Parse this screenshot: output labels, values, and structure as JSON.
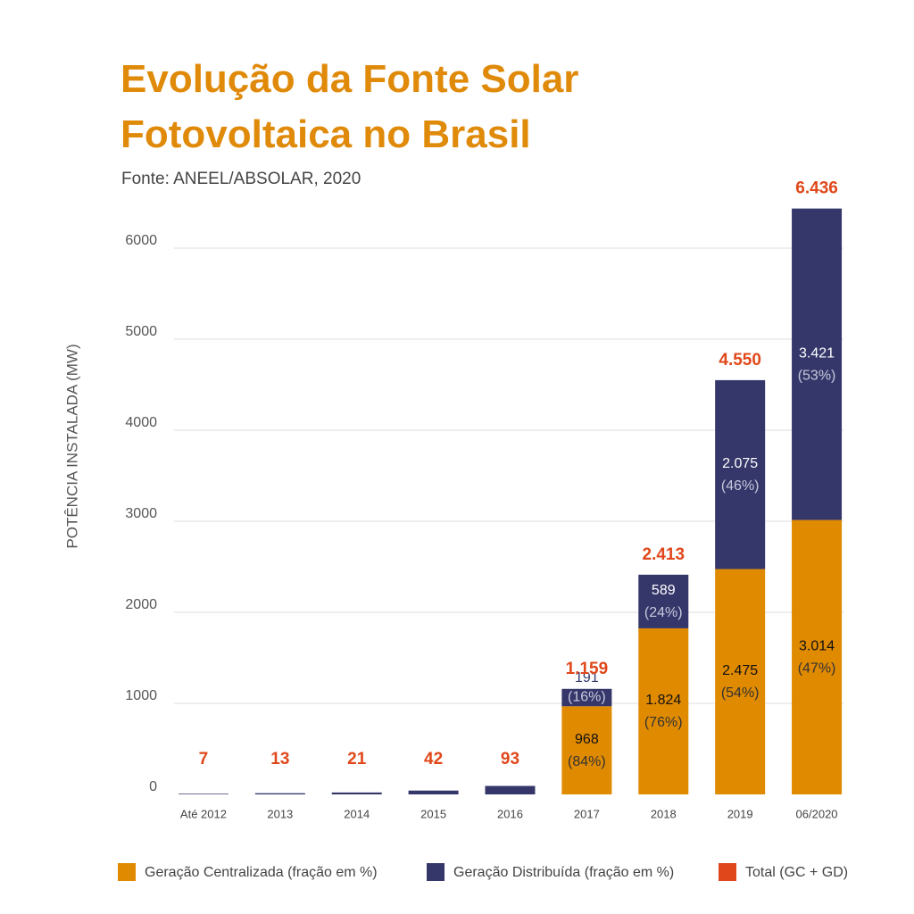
{
  "chart_data": {
    "type": "stacked_bar",
    "title": "Evolução da Fonte Solar Fotovoltaica no Brasil",
    "subtitle": "Fonte: ANEEL/ABSOLAR, 2020",
    "y_label": "POTÊNCIA INSTALADA (MW)",
    "categories": [
      "Até 2012",
      "2013",
      "2014",
      "2015",
      "2016",
      "2017",
      "2018",
      "2019",
      "06/2020"
    ],
    "series": [
      {
        "name": "Geração Centralizada (fração em %)",
        "color": "#e08a00",
        "values": [
          0,
          0,
          0,
          0,
          0,
          968,
          1824,
          2475,
          3014
        ],
        "value_labels": [
          null,
          null,
          null,
          null,
          null,
          "968",
          "1.824",
          "2.475",
          "3.014"
        ],
        "fractions": [
          null,
          null,
          null,
          null,
          null,
          84,
          76,
          54,
          47
        ],
        "fraction_labels": [
          null,
          null,
          null,
          null,
          null,
          "(84%)",
          "(76%)",
          "(54%)",
          "(47%)"
        ]
      },
      {
        "name": "Geração Distribuída (fração em %)",
        "color": "#35376a",
        "values": [
          7,
          13,
          21,
          42,
          93,
          191,
          589,
          2075,
          3421
        ],
        "value_labels": [
          null,
          null,
          null,
          null,
          null,
          "191",
          "589",
          "2.075",
          "3.421"
        ],
        "fractions": [
          null,
          null,
          null,
          null,
          null,
          16,
          24,
          46,
          53
        ],
        "fraction_labels": [
          null,
          null,
          null,
          null,
          null,
          "(16%)",
          "(24%)",
          "(46%)",
          "(53%)"
        ]
      }
    ],
    "totals": {
      "name": "Total (GC + GD)",
      "color": "#e0471a",
      "values": [
        7,
        13,
        21,
        42,
        93,
        1159,
        2413,
        4550,
        6436
      ],
      "value_labels": [
        "7",
        "13",
        "21",
        "42",
        "93",
        "1.159",
        "2.413",
        "4.550",
        "6.436"
      ]
    },
    "ylim": [
      0,
      6500
    ],
    "yticks": [
      0,
      1000,
      2000,
      3000,
      4000,
      5000,
      6000
    ],
    "grid": true
  }
}
